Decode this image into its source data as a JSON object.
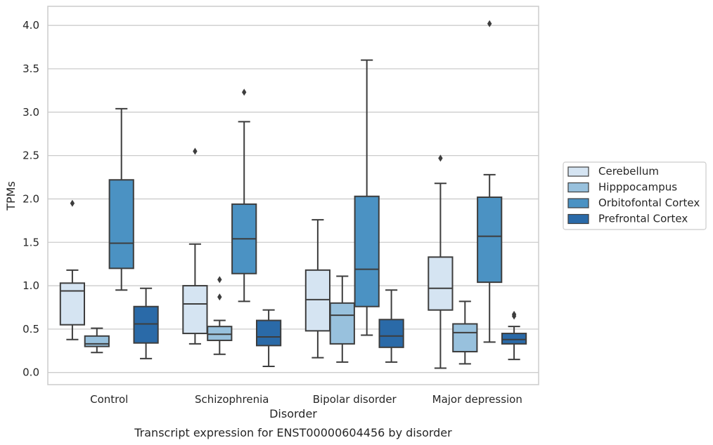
{
  "chart_data": {
    "type": "box",
    "xlabel": "Disorder",
    "ylabel": "TPMs",
    "caption": "Transcript expression for ENST00000604456 by disorder",
    "ylim": [
      -0.14,
      4.22
    ],
    "yticks": [
      0.0,
      0.5,
      1.0,
      1.5,
      2.0,
      2.5,
      3.0,
      3.5,
      4.0
    ],
    "ytick_labels": [
      "0.0",
      "0.5",
      "1.0",
      "1.5",
      "2.0",
      "2.5",
      "3.0",
      "3.5",
      "4.0"
    ],
    "grid": true,
    "legend_position": "right",
    "categories": [
      "Control",
      "Schizophrenia",
      "Bipolar disorder",
      "Major depression"
    ],
    "series": [
      {
        "name": "Cerebellum",
        "color": "#d5e4f2",
        "boxes": [
          {
            "whislo": 0.38,
            "q1": 0.55,
            "med": 0.94,
            "q3": 1.03,
            "whishi": 1.18,
            "fliers": [
              1.95
            ]
          },
          {
            "whislo": 0.33,
            "q1": 0.45,
            "med": 0.79,
            "q3": 1.0,
            "whishi": 1.48,
            "fliers": [
              2.55
            ]
          },
          {
            "whislo": 0.17,
            "q1": 0.48,
            "med": 0.84,
            "q3": 1.18,
            "whishi": 1.76,
            "fliers": []
          },
          {
            "whislo": 0.05,
            "q1": 0.72,
            "med": 0.97,
            "q3": 1.33,
            "whishi": 2.18,
            "fliers": [
              2.47
            ]
          }
        ]
      },
      {
        "name": "Hipppocampus",
        "color": "#98c1dd",
        "boxes": [
          {
            "whislo": 0.23,
            "q1": 0.3,
            "med": 0.33,
            "q3": 0.42,
            "whishi": 0.51,
            "fliers": []
          },
          {
            "whislo": 0.21,
            "q1": 0.37,
            "med": 0.44,
            "q3": 0.53,
            "whishi": 0.6,
            "fliers": [
              0.87,
              1.07
            ]
          },
          {
            "whislo": 0.12,
            "q1": 0.33,
            "med": 0.66,
            "q3": 0.8,
            "whishi": 1.11,
            "fliers": []
          },
          {
            "whislo": 0.1,
            "q1": 0.24,
            "med": 0.46,
            "q3": 0.56,
            "whishi": 0.82,
            "fliers": []
          }
        ]
      },
      {
        "name": "Orbitofontal Cortex",
        "color": "#4b92c3",
        "boxes": [
          {
            "whislo": 0.95,
            "q1": 1.2,
            "med": 1.49,
            "q3": 2.22,
            "whishi": 3.04,
            "fliers": []
          },
          {
            "whislo": 0.82,
            "q1": 1.14,
            "med": 1.54,
            "q3": 1.94,
            "whishi": 2.89,
            "fliers": [
              3.23
            ]
          },
          {
            "whislo": 0.43,
            "q1": 0.76,
            "med": 1.19,
            "q3": 2.03,
            "whishi": 3.6,
            "fliers": []
          },
          {
            "whislo": 0.35,
            "q1": 1.04,
            "med": 1.57,
            "q3": 2.02,
            "whishi": 2.28,
            "fliers": [
              4.02
            ]
          }
        ]
      },
      {
        "name": "Prefrontal Cortex",
        "color": "#2a6aa8",
        "boxes": [
          {
            "whislo": 0.16,
            "q1": 0.34,
            "med": 0.56,
            "q3": 0.76,
            "whishi": 0.97,
            "fliers": []
          },
          {
            "whislo": 0.07,
            "q1": 0.31,
            "med": 0.41,
            "q3": 0.6,
            "whishi": 0.72,
            "fliers": []
          },
          {
            "whislo": 0.12,
            "q1": 0.29,
            "med": 0.42,
            "q3": 0.61,
            "whishi": 0.95,
            "fliers": []
          },
          {
            "whislo": 0.15,
            "q1": 0.33,
            "med": 0.38,
            "q3": 0.45,
            "whishi": 0.53,
            "fliers": [
              0.65,
              0.67
            ]
          }
        ]
      }
    ]
  }
}
